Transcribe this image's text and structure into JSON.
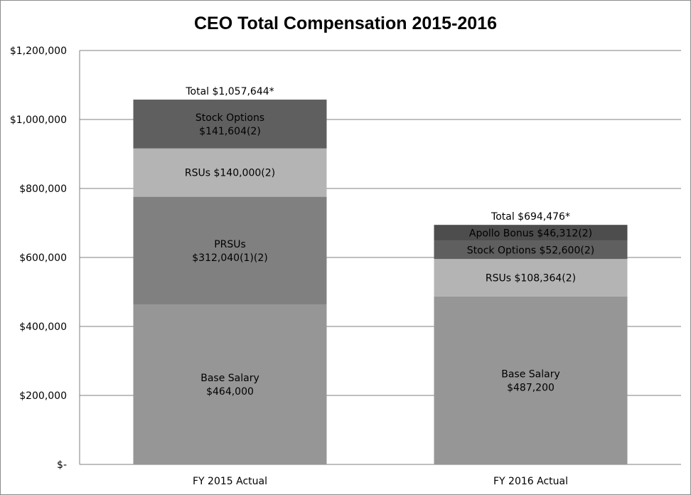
{
  "chart_data": {
    "type": "bar",
    "stacked": true,
    "title": "CEO Total Compensation 2015-2016",
    "xlabel": "",
    "ylabel": "",
    "ylim": [
      0,
      1200000
    ],
    "yticks": [
      0,
      200000,
      400000,
      600000,
      800000,
      1000000,
      1200000
    ],
    "ytick_labels": [
      "$-",
      "$200,000",
      "$400,000",
      "$600,000",
      "$800,000",
      "$1,000,000",
      "$1,200,000"
    ],
    "grid": true,
    "legend": "none",
    "categories": [
      "FY 2015 Actual",
      "FY 2016 Actual"
    ],
    "bars": [
      {
        "category": "FY 2015 Actual",
        "total_label": "Total $1,057,644*",
        "segments": [
          {
            "value": 464000,
            "color": "#969696",
            "label_lines": [
              "Base Salary",
              "$464,000"
            ]
          },
          {
            "value": 312040,
            "color": "#808080",
            "label_lines": [
              "PRSUs",
              "$312,040(1)(2)"
            ]
          },
          {
            "value": 140000,
            "color": "#b4b4b4",
            "label_lines": [
              "RSUs $140,000(2)"
            ]
          },
          {
            "value": 141604,
            "color": "#5f5f5f",
            "label_lines": [
              "Stock Options",
              "$141,604(2)"
            ]
          }
        ]
      },
      {
        "category": "FY 2016 Actual",
        "total_label": "Total $694,476*",
        "segments": [
          {
            "value": 487200,
            "color": "#969696",
            "label_lines": [
              "Base Salary",
              "$487,200"
            ]
          },
          {
            "value": 108364,
            "color": "#b4b4b4",
            "label_lines": [
              "RSUs $108,364(2)"
            ]
          },
          {
            "value": 52600,
            "color": "#5f5f5f",
            "label_lines": [
              "Stock Options $52,600(2)"
            ]
          },
          {
            "value": 46312,
            "color": "#4d4d4d",
            "label_lines": [
              "Apollo Bonus $46,312(2)"
            ]
          }
        ]
      }
    ]
  }
}
